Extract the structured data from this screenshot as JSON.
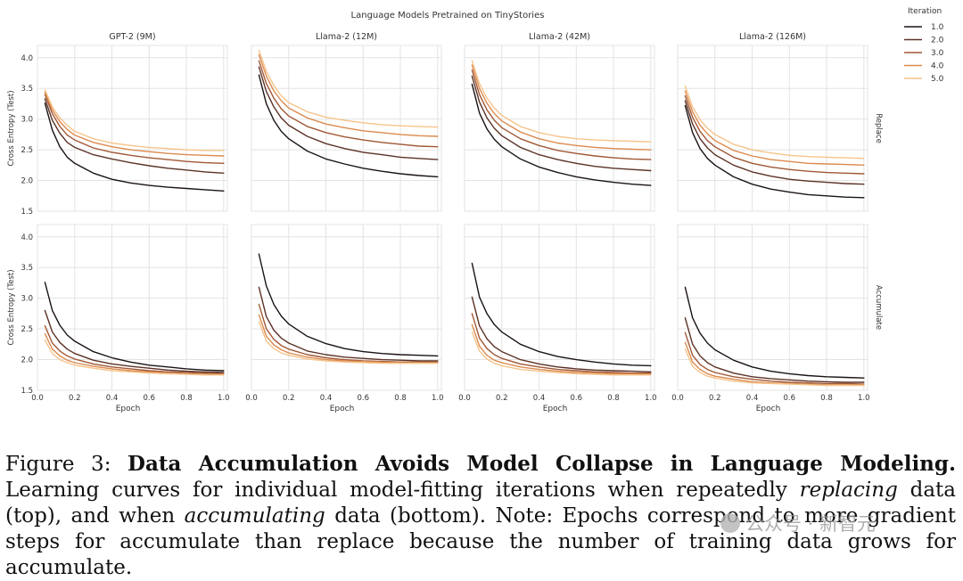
{
  "figure": {
    "suptitle": "Language Models Pretrained on TinyStories",
    "legend_title": "Iteration",
    "legend_labels": [
      "1.0",
      "2.0",
      "3.0",
      "4.0",
      "5.0"
    ],
    "colors": [
      "#1b1314",
      "#5b3227",
      "#a05735",
      "#dc8a4e",
      "#f5c48b"
    ]
  },
  "chart_data": [
    {
      "type": "line",
      "title": "GPT-2 (9M)",
      "row": "Replace",
      "ylabel": "Cross Entropy (Test)",
      "xlabel": "",
      "x": [
        0.04,
        0.08,
        0.12,
        0.16,
        0.2,
        0.3,
        0.4,
        0.5,
        0.6,
        0.7,
        0.8,
        0.9,
        1.0
      ],
      "xlim": [
        0,
        1
      ],
      "ylim": [
        1.5,
        4.2
      ],
      "series": [
        {
          "name": "1.0",
          "values": [
            3.26,
            2.82,
            2.55,
            2.38,
            2.28,
            2.12,
            2.02,
            1.96,
            1.92,
            1.89,
            1.87,
            1.85,
            1.83
          ]
        },
        {
          "name": "2.0",
          "values": [
            3.33,
            2.98,
            2.77,
            2.62,
            2.54,
            2.42,
            2.35,
            2.29,
            2.24,
            2.2,
            2.17,
            2.14,
            2.12
          ]
        },
        {
          "name": "3.0",
          "values": [
            3.4,
            3.09,
            2.88,
            2.74,
            2.66,
            2.53,
            2.46,
            2.41,
            2.37,
            2.34,
            2.31,
            2.29,
            2.28
          ]
        },
        {
          "name": "4.0",
          "values": [
            3.44,
            3.15,
            2.96,
            2.83,
            2.74,
            2.62,
            2.55,
            2.5,
            2.47,
            2.44,
            2.42,
            2.41,
            2.4
          ]
        },
        {
          "name": "5.0",
          "values": [
            3.48,
            3.2,
            3.02,
            2.9,
            2.8,
            2.68,
            2.61,
            2.57,
            2.54,
            2.52,
            2.5,
            2.49,
            2.49
          ]
        }
      ]
    },
    {
      "type": "line",
      "title": "Llama-2 (12M)",
      "row": "Replace",
      "ylabel": "",
      "xlabel": "",
      "x": [
        0.04,
        0.08,
        0.12,
        0.16,
        0.2,
        0.3,
        0.4,
        0.5,
        0.6,
        0.7,
        0.8,
        0.9,
        1.0
      ],
      "xlim": [
        0,
        1
      ],
      "ylim": [
        1.5,
        4.2
      ],
      "series": [
        {
          "name": "1.0",
          "values": [
            3.72,
            3.25,
            2.98,
            2.8,
            2.68,
            2.48,
            2.35,
            2.27,
            2.2,
            2.15,
            2.11,
            2.08,
            2.06
          ]
        },
        {
          "name": "2.0",
          "values": [
            3.85,
            3.45,
            3.2,
            3.02,
            2.9,
            2.72,
            2.6,
            2.52,
            2.46,
            2.42,
            2.38,
            2.36,
            2.34
          ]
        },
        {
          "name": "3.0",
          "values": [
            3.95,
            3.58,
            3.34,
            3.17,
            3.05,
            2.88,
            2.78,
            2.71,
            2.66,
            2.62,
            2.59,
            2.56,
            2.55
          ]
        },
        {
          "name": "4.0",
          "values": [
            4.05,
            3.7,
            3.46,
            3.3,
            3.18,
            3.02,
            2.92,
            2.86,
            2.81,
            2.78,
            2.75,
            2.73,
            2.72
          ]
        },
        {
          "name": "5.0",
          "values": [
            4.12,
            3.78,
            3.55,
            3.38,
            3.27,
            3.12,
            3.03,
            2.98,
            2.94,
            2.91,
            2.89,
            2.88,
            2.87
          ]
        }
      ]
    },
    {
      "type": "line",
      "title": "Llama-2 (42M)",
      "row": "Replace",
      "ylabel": "",
      "xlabel": "",
      "x": [
        0.04,
        0.08,
        0.12,
        0.16,
        0.2,
        0.3,
        0.4,
        0.5,
        0.6,
        0.7,
        0.8,
        0.9,
        1.0
      ],
      "xlim": [
        0,
        1
      ],
      "ylim": [
        1.5,
        4.2
      ],
      "series": [
        {
          "name": "1.0",
          "values": [
            3.57,
            3.1,
            2.84,
            2.67,
            2.55,
            2.35,
            2.22,
            2.13,
            2.06,
            2.01,
            1.97,
            1.94,
            1.92
          ]
        },
        {
          "name": "2.0",
          "values": [
            3.7,
            3.28,
            3.02,
            2.85,
            2.73,
            2.54,
            2.42,
            2.34,
            2.28,
            2.23,
            2.2,
            2.18,
            2.16
          ]
        },
        {
          "name": "3.0",
          "values": [
            3.8,
            3.4,
            3.15,
            2.98,
            2.86,
            2.68,
            2.57,
            2.49,
            2.44,
            2.4,
            2.37,
            2.35,
            2.34
          ]
        },
        {
          "name": "4.0",
          "values": [
            3.88,
            3.5,
            3.26,
            3.09,
            2.97,
            2.79,
            2.68,
            2.61,
            2.57,
            2.54,
            2.52,
            2.51,
            2.5
          ]
        },
        {
          "name": "5.0",
          "values": [
            3.95,
            3.58,
            3.34,
            3.18,
            3.06,
            2.88,
            2.78,
            2.72,
            2.68,
            2.66,
            2.65,
            2.64,
            2.63
          ]
        }
      ]
    },
    {
      "type": "line",
      "title": "Llama-2 (126M)",
      "row": "Replace",
      "ylabel": "",
      "xlabel": "",
      "x": [
        0.04,
        0.08,
        0.12,
        0.16,
        0.2,
        0.3,
        0.4,
        0.5,
        0.6,
        0.7,
        0.8,
        0.9,
        1.0
      ],
      "xlim": [
        0,
        1
      ],
      "ylim": [
        1.5,
        4.2
      ],
      "series": [
        {
          "name": "1.0",
          "values": [
            3.22,
            2.78,
            2.52,
            2.36,
            2.25,
            2.06,
            1.94,
            1.86,
            1.81,
            1.77,
            1.75,
            1.73,
            1.72
          ]
        },
        {
          "name": "2.0",
          "values": [
            3.3,
            2.92,
            2.68,
            2.53,
            2.42,
            2.25,
            2.14,
            2.07,
            2.02,
            1.99,
            1.97,
            1.95,
            1.94
          ]
        },
        {
          "name": "3.0",
          "values": [
            3.38,
            3.03,
            2.8,
            2.65,
            2.55,
            2.38,
            2.28,
            2.22,
            2.18,
            2.15,
            2.13,
            2.12,
            2.11
          ]
        },
        {
          "name": "4.0",
          "values": [
            3.46,
            3.12,
            2.9,
            2.76,
            2.65,
            2.49,
            2.4,
            2.34,
            2.31,
            2.28,
            2.27,
            2.26,
            2.25
          ]
        },
        {
          "name": "5.0",
          "values": [
            3.54,
            3.2,
            2.99,
            2.85,
            2.75,
            2.59,
            2.5,
            2.45,
            2.41,
            2.39,
            2.38,
            2.37,
            2.36
          ]
        }
      ]
    },
    {
      "type": "line",
      "title": "",
      "row": "Accumulate",
      "ylabel": "Cross Entropy (Test)",
      "xlabel": "Epoch",
      "x": [
        0.04,
        0.08,
        0.12,
        0.16,
        0.2,
        0.3,
        0.4,
        0.5,
        0.6,
        0.7,
        0.8,
        0.9,
        1.0
      ],
      "xlim": [
        0,
        1
      ],
      "ylim": [
        1.5,
        4.2
      ],
      "series": [
        {
          "name": "1.0",
          "values": [
            3.26,
            2.8,
            2.56,
            2.4,
            2.3,
            2.13,
            2.03,
            1.96,
            1.91,
            1.88,
            1.85,
            1.83,
            1.82
          ]
        },
        {
          "name": "2.0",
          "values": [
            2.8,
            2.45,
            2.28,
            2.17,
            2.1,
            1.99,
            1.93,
            1.89,
            1.86,
            1.83,
            1.81,
            1.8,
            1.79
          ]
        },
        {
          "name": "3.0",
          "values": [
            2.55,
            2.27,
            2.14,
            2.06,
            2.01,
            1.93,
            1.88,
            1.85,
            1.82,
            1.8,
            1.79,
            1.78,
            1.77
          ]
        },
        {
          "name": "4.0",
          "values": [
            2.42,
            2.17,
            2.06,
            1.99,
            1.95,
            1.89,
            1.85,
            1.82,
            1.8,
            1.78,
            1.77,
            1.76,
            1.76
          ]
        },
        {
          "name": "5.0",
          "values": [
            2.32,
            2.1,
            2.0,
            1.95,
            1.91,
            1.86,
            1.82,
            1.8,
            1.78,
            1.77,
            1.76,
            1.75,
            1.75
          ]
        }
      ]
    },
    {
      "type": "line",
      "title": "",
      "row": "Accumulate",
      "ylabel": "",
      "xlabel": "Epoch",
      "x": [
        0.04,
        0.08,
        0.12,
        0.16,
        0.2,
        0.3,
        0.4,
        0.5,
        0.6,
        0.7,
        0.8,
        0.9,
        1.0
      ],
      "xlim": [
        0,
        1
      ],
      "ylim": [
        1.5,
        4.2
      ],
      "series": [
        {
          "name": "1.0",
          "values": [
            3.72,
            3.2,
            2.9,
            2.71,
            2.58,
            2.38,
            2.26,
            2.18,
            2.13,
            2.1,
            2.08,
            2.07,
            2.06
          ]
        },
        {
          "name": "2.0",
          "values": [
            3.18,
            2.7,
            2.48,
            2.35,
            2.27,
            2.14,
            2.08,
            2.04,
            2.02,
            2.0,
            1.99,
            1.98,
            1.98
          ]
        },
        {
          "name": "3.0",
          "values": [
            2.9,
            2.5,
            2.33,
            2.23,
            2.17,
            2.08,
            2.03,
            2.0,
            1.98,
            1.97,
            1.96,
            1.96,
            1.96
          ]
        },
        {
          "name": "4.0",
          "values": [
            2.73,
            2.38,
            2.24,
            2.16,
            2.11,
            2.04,
            2.0,
            1.98,
            1.97,
            1.96,
            1.95,
            1.95,
            1.95
          ]
        },
        {
          "name": "5.0",
          "values": [
            2.62,
            2.3,
            2.18,
            2.11,
            2.07,
            2.01,
            1.98,
            1.96,
            1.95,
            1.94,
            1.94,
            1.94,
            1.94
          ]
        }
      ]
    },
    {
      "type": "line",
      "title": "",
      "row": "Accumulate",
      "ylabel": "",
      "xlabel": "Epoch",
      "x": [
        0.04,
        0.08,
        0.12,
        0.16,
        0.2,
        0.3,
        0.4,
        0.5,
        0.6,
        0.7,
        0.8,
        0.9,
        1.0
      ],
      "xlim": [
        0,
        1
      ],
      "ylim": [
        1.5,
        4.2
      ],
      "series": [
        {
          "name": "1.0",
          "values": [
            3.57,
            3.02,
            2.75,
            2.57,
            2.45,
            2.25,
            2.13,
            2.05,
            2.0,
            1.96,
            1.93,
            1.91,
            1.9
          ]
        },
        {
          "name": "2.0",
          "values": [
            3.02,
            2.55,
            2.34,
            2.21,
            2.13,
            2.0,
            1.93,
            1.88,
            1.85,
            1.83,
            1.82,
            1.81,
            1.8
          ]
        },
        {
          "name": "3.0",
          "values": [
            2.75,
            2.35,
            2.18,
            2.08,
            2.02,
            1.93,
            1.88,
            1.84,
            1.82,
            1.8,
            1.79,
            1.78,
            1.78
          ]
        },
        {
          "name": "4.0",
          "values": [
            2.57,
            2.22,
            2.07,
            1.99,
            1.95,
            1.88,
            1.84,
            1.81,
            1.79,
            1.78,
            1.77,
            1.77,
            1.76
          ]
        },
        {
          "name": "5.0",
          "values": [
            2.45,
            2.14,
            2.01,
            1.94,
            1.9,
            1.84,
            1.81,
            1.79,
            1.77,
            1.76,
            1.75,
            1.75,
            1.75
          ]
        }
      ]
    },
    {
      "type": "line",
      "title": "",
      "row": "Accumulate",
      "ylabel": "",
      "xlabel": "Epoch",
      "x": [
        0.04,
        0.08,
        0.12,
        0.16,
        0.2,
        0.3,
        0.4,
        0.5,
        0.6,
        0.7,
        0.8,
        0.9,
        1.0
      ],
      "xlim": [
        0,
        1
      ],
      "ylim": [
        1.5,
        4.2
      ],
      "series": [
        {
          "name": "1.0",
          "values": [
            3.18,
            2.68,
            2.43,
            2.27,
            2.16,
            1.99,
            1.88,
            1.81,
            1.77,
            1.74,
            1.72,
            1.71,
            1.7
          ]
        },
        {
          "name": "2.0",
          "values": [
            2.68,
            2.25,
            2.06,
            1.95,
            1.88,
            1.78,
            1.72,
            1.69,
            1.67,
            1.65,
            1.64,
            1.63,
            1.63
          ]
        },
        {
          "name": "3.0",
          "values": [
            2.44,
            2.07,
            1.92,
            1.84,
            1.79,
            1.72,
            1.68,
            1.65,
            1.63,
            1.62,
            1.61,
            1.61,
            1.6
          ]
        },
        {
          "name": "4.0",
          "values": [
            2.28,
            1.96,
            1.84,
            1.77,
            1.73,
            1.68,
            1.64,
            1.62,
            1.61,
            1.6,
            1.59,
            1.59,
            1.59
          ]
        },
        {
          "name": "5.0",
          "values": [
            2.17,
            1.89,
            1.79,
            1.73,
            1.7,
            1.65,
            1.62,
            1.61,
            1.6,
            1.59,
            1.58,
            1.58,
            1.58
          ]
        }
      ]
    }
  ],
  "axes": {
    "xticks": [
      "0.0",
      "0.2",
      "0.4",
      "0.6",
      "0.8",
      "1.0"
    ],
    "xtick_values": [
      0,
      0.2,
      0.4,
      0.6,
      0.8,
      1.0
    ],
    "yticks": [
      "1.5",
      "2.0",
      "2.5",
      "3.0",
      "3.5",
      "4.0"
    ],
    "ytick_values": [
      1.5,
      2.0,
      2.5,
      3.0,
      3.5,
      4.0
    ]
  },
  "caption": {
    "label": "Figure 3: ",
    "bold": "Data Accumulation Avoids Model Collapse in Language Modeling.",
    "t1": " Learning curves for individual model-fitting iterations when repeatedly ",
    "i1": "replacing",
    "t2": " data (top), and when ",
    "i2": "accumulating",
    "t3": " data (bottom).  Note: Epochs correspond to more gradient steps for accumulate than replace because the number of training data grows for accumulate."
  },
  "watermark": "公众号 · 新智元"
}
